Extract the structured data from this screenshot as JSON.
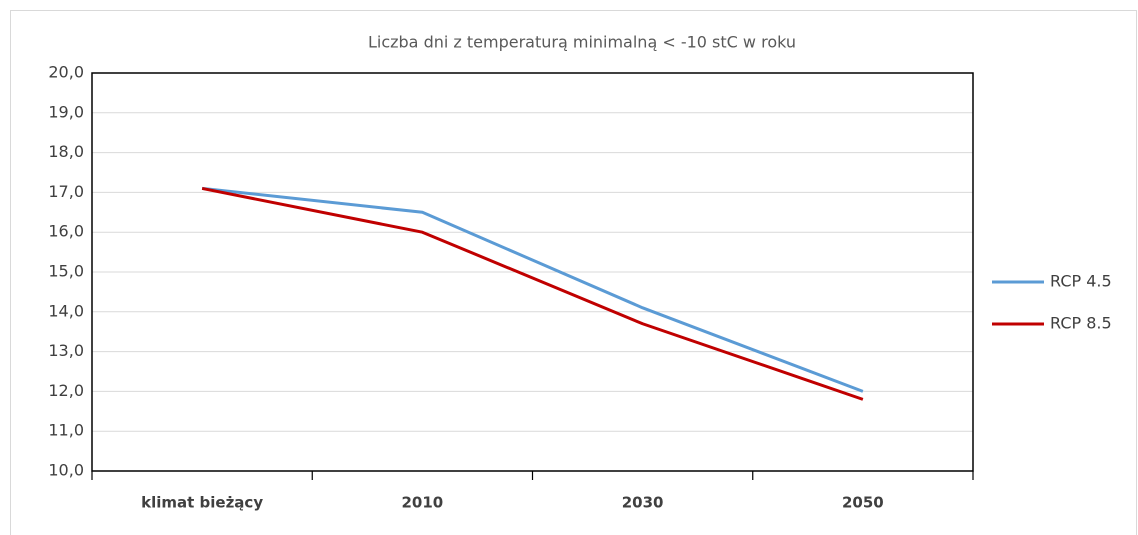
{
  "chart_data": {
    "type": "line",
    "title": "Liczba dni z temperaturą minimalną < -10 stC w roku",
    "categories": [
      "klimat bieżący",
      "2010",
      "2030",
      "2050"
    ],
    "series": [
      {
        "name": "RCP 4.5",
        "color": "#5b9bd5",
        "values": [
          17.1,
          16.5,
          14.1,
          12.0
        ]
      },
      {
        "name": "RCP 8.5",
        "color": "#c00000",
        "values": [
          17.1,
          16.0,
          13.7,
          11.8
        ]
      }
    ],
    "ylim": [
      10,
      20
    ],
    "yticks": [
      {
        "value": 10,
        "label": "10,0"
      },
      {
        "value": 11,
        "label": "11,0"
      },
      {
        "value": 12,
        "label": "12,0"
      },
      {
        "value": 13,
        "label": "13,0"
      },
      {
        "value": 14,
        "label": "14,0"
      },
      {
        "value": 15,
        "label": "15,0"
      },
      {
        "value": 16,
        "label": "16,0"
      },
      {
        "value": 17,
        "label": "17,0"
      },
      {
        "value": 18,
        "label": "18,0"
      },
      {
        "value": 19,
        "label": "19,0"
      },
      {
        "value": 20,
        "label": "20,0"
      }
    ],
    "grid": true,
    "legend": "right"
  }
}
